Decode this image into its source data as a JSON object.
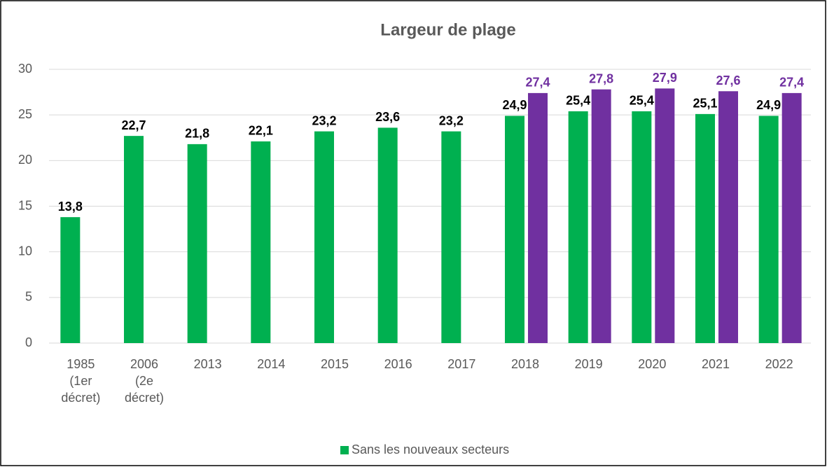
{
  "chart_data": {
    "type": "bar",
    "title": "Largeur de plage",
    "categories": [
      "1985\n(1er\ndécret)",
      "2006\n(2e\ndécret)",
      "2013",
      "2014",
      "2015",
      "2016",
      "2017",
      "2018",
      "2019",
      "2020",
      "2021",
      "2022"
    ],
    "series": [
      {
        "name": "Sans les nouveaux secteurs",
        "color": "#00b050",
        "values": [
          13.8,
          22.7,
          21.8,
          22.1,
          23.2,
          23.6,
          23.2,
          24.9,
          25.4,
          25.4,
          25.1,
          24.9
        ],
        "value_labels": [
          "13,8",
          "22,7",
          "21,8",
          "22,1",
          "23,2",
          "23,6",
          "23,2",
          "24,9",
          "25,4",
          "25,4",
          "25,1",
          "24,9"
        ],
        "label_color": "#000000"
      },
      {
        "color": "#7030a0",
        "values": [
          null,
          null,
          null,
          null,
          null,
          null,
          null,
          27.4,
          27.8,
          27.9,
          27.6,
          27.4
        ],
        "value_labels": [
          null,
          null,
          null,
          null,
          null,
          null,
          null,
          "27,4",
          "27,8",
          "27,9",
          "27,6",
          "27,4"
        ],
        "label_color": "#7030a0"
      }
    ],
    "ylim": [
      0,
      30
    ],
    "yticks": [
      0,
      5,
      10,
      15,
      20,
      25,
      30
    ],
    "grid": true,
    "legend": "bottom"
  }
}
